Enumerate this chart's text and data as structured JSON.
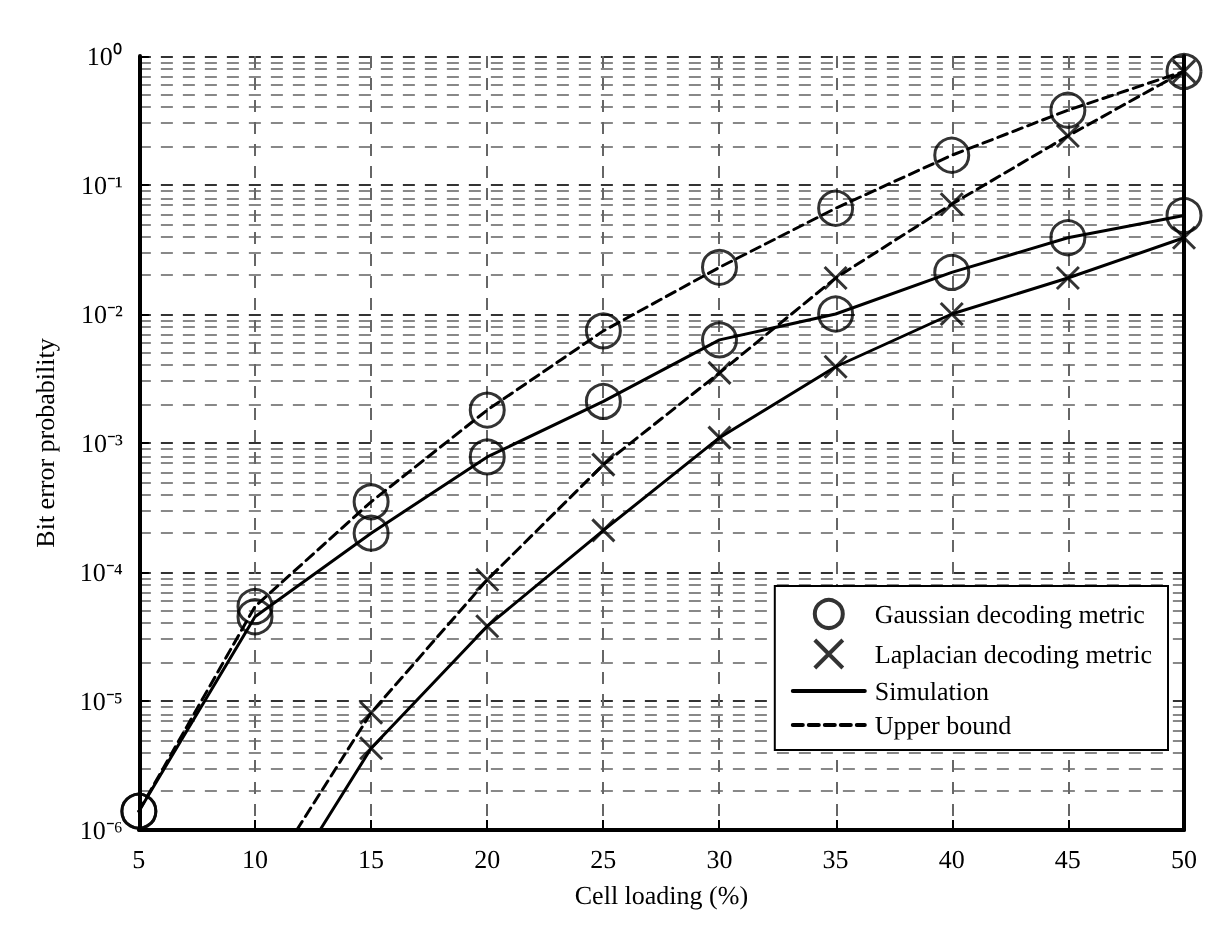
{
  "chart_data": {
    "type": "line",
    "xlabel": "Cell loading (%)",
    "ylabel": "Bit error probability",
    "log": "y",
    "grid": true,
    "legend": "bottom right",
    "xlim": [
      5,
      50
    ],
    "xticks": [
      5,
      10,
      15,
      20,
      25,
      30,
      35,
      40,
      45,
      50
    ],
    "ylim": [
      1e-06,
      1
    ],
    "yticks": [
      {
        "value": 1e-06,
        "label": "10⁻⁶"
      },
      {
        "value": 1e-05,
        "label": "10⁻⁵"
      },
      {
        "value": 0.0001,
        "label": "10⁻⁴"
      },
      {
        "value": 0.001,
        "label": "10⁻³"
      },
      {
        "value": 0.01,
        "label": "10⁻²"
      },
      {
        "value": 0.1,
        "label": "10⁻¹"
      },
      {
        "value": 1,
        "label": "10⁰"
      }
    ],
    "series": [
      {
        "name": "Gaussian decoding metric",
        "type": "scatter",
        "marker": "circle",
        "color": "#000000",
        "x": [
          5,
          10,
          15,
          20,
          25,
          30,
          35,
          40,
          45,
          50,
          5,
          10,
          15,
          20,
          25,
          30,
          35,
          40,
          45,
          50
        ],
        "values": [
          1.4e-06,
          4.5e-05,
          0.0002,
          0.00078,
          0.0021,
          0.0063,
          0.01,
          0.021,
          0.039,
          0.058,
          1.4e-06,
          5.4e-05,
          0.00035,
          0.0018,
          0.0074,
          0.023,
          0.066,
          0.17,
          0.38,
          0.76
        ]
      },
      {
        "name": "Laplacian decoding metric",
        "type": "scatter",
        "marker": "cross",
        "color": "#000000",
        "x": [
          15,
          20,
          25,
          30,
          35,
          40,
          45,
          50,
          15,
          20,
          25,
          30,
          35,
          40,
          45,
          50
        ],
        "values": [
          4.3e-06,
          3.8e-05,
          0.00021,
          0.0011,
          0.0039,
          0.01,
          0.019,
          0.039,
          8.1e-06,
          8.7e-05,
          0.00068,
          0.0035,
          0.019,
          0.071,
          0.24,
          0.76
        ]
      },
      {
        "name": "Simulation",
        "marker": "none",
        "line_style": "solid",
        "color": "#000000",
        "x": [
          5,
          10,
          15,
          20,
          25,
          30,
          35,
          40,
          45,
          50
        ],
        "values": [
          1.4e-06,
          4.5e-05,
          0.0002,
          0.00078,
          0.0021,
          0.0063,
          0.01,
          0.021,
          0.039,
          0.058
        ]
      },
      {
        "name": "Upper bound",
        "marker": "none",
        "line_style": "dashed",
        "color": "#000000",
        "x": [
          5,
          10,
          15,
          20,
          25,
          30,
          35,
          40,
          45,
          50
        ],
        "values": [
          1.4e-06,
          5.4e-05,
          0.00035,
          0.0018,
          0.0074,
          0.023,
          0.066,
          0.17,
          0.38,
          0.76
        ]
      },
      {
        "marker": "none",
        "line_style": "solid",
        "color": "#000000",
        "x": [
          12.8,
          15,
          20,
          25,
          30,
          35,
          40,
          45,
          50
        ],
        "values": [
          1e-06,
          4.3e-06,
          3.8e-05,
          0.00021,
          0.0011,
          0.0039,
          0.01,
          0.019,
          0.039
        ]
      },
      {
        "marker": "none",
        "line_style": "dashed",
        "color": "#000000",
        "x": [
          11.8,
          15,
          20,
          25,
          30,
          35,
          40,
          45,
          50
        ],
        "values": [
          1e-06,
          8.1e-06,
          8.7e-05,
          0.00068,
          0.0035,
          0.019,
          0.071,
          0.24,
          0.76
        ]
      }
    ]
  }
}
